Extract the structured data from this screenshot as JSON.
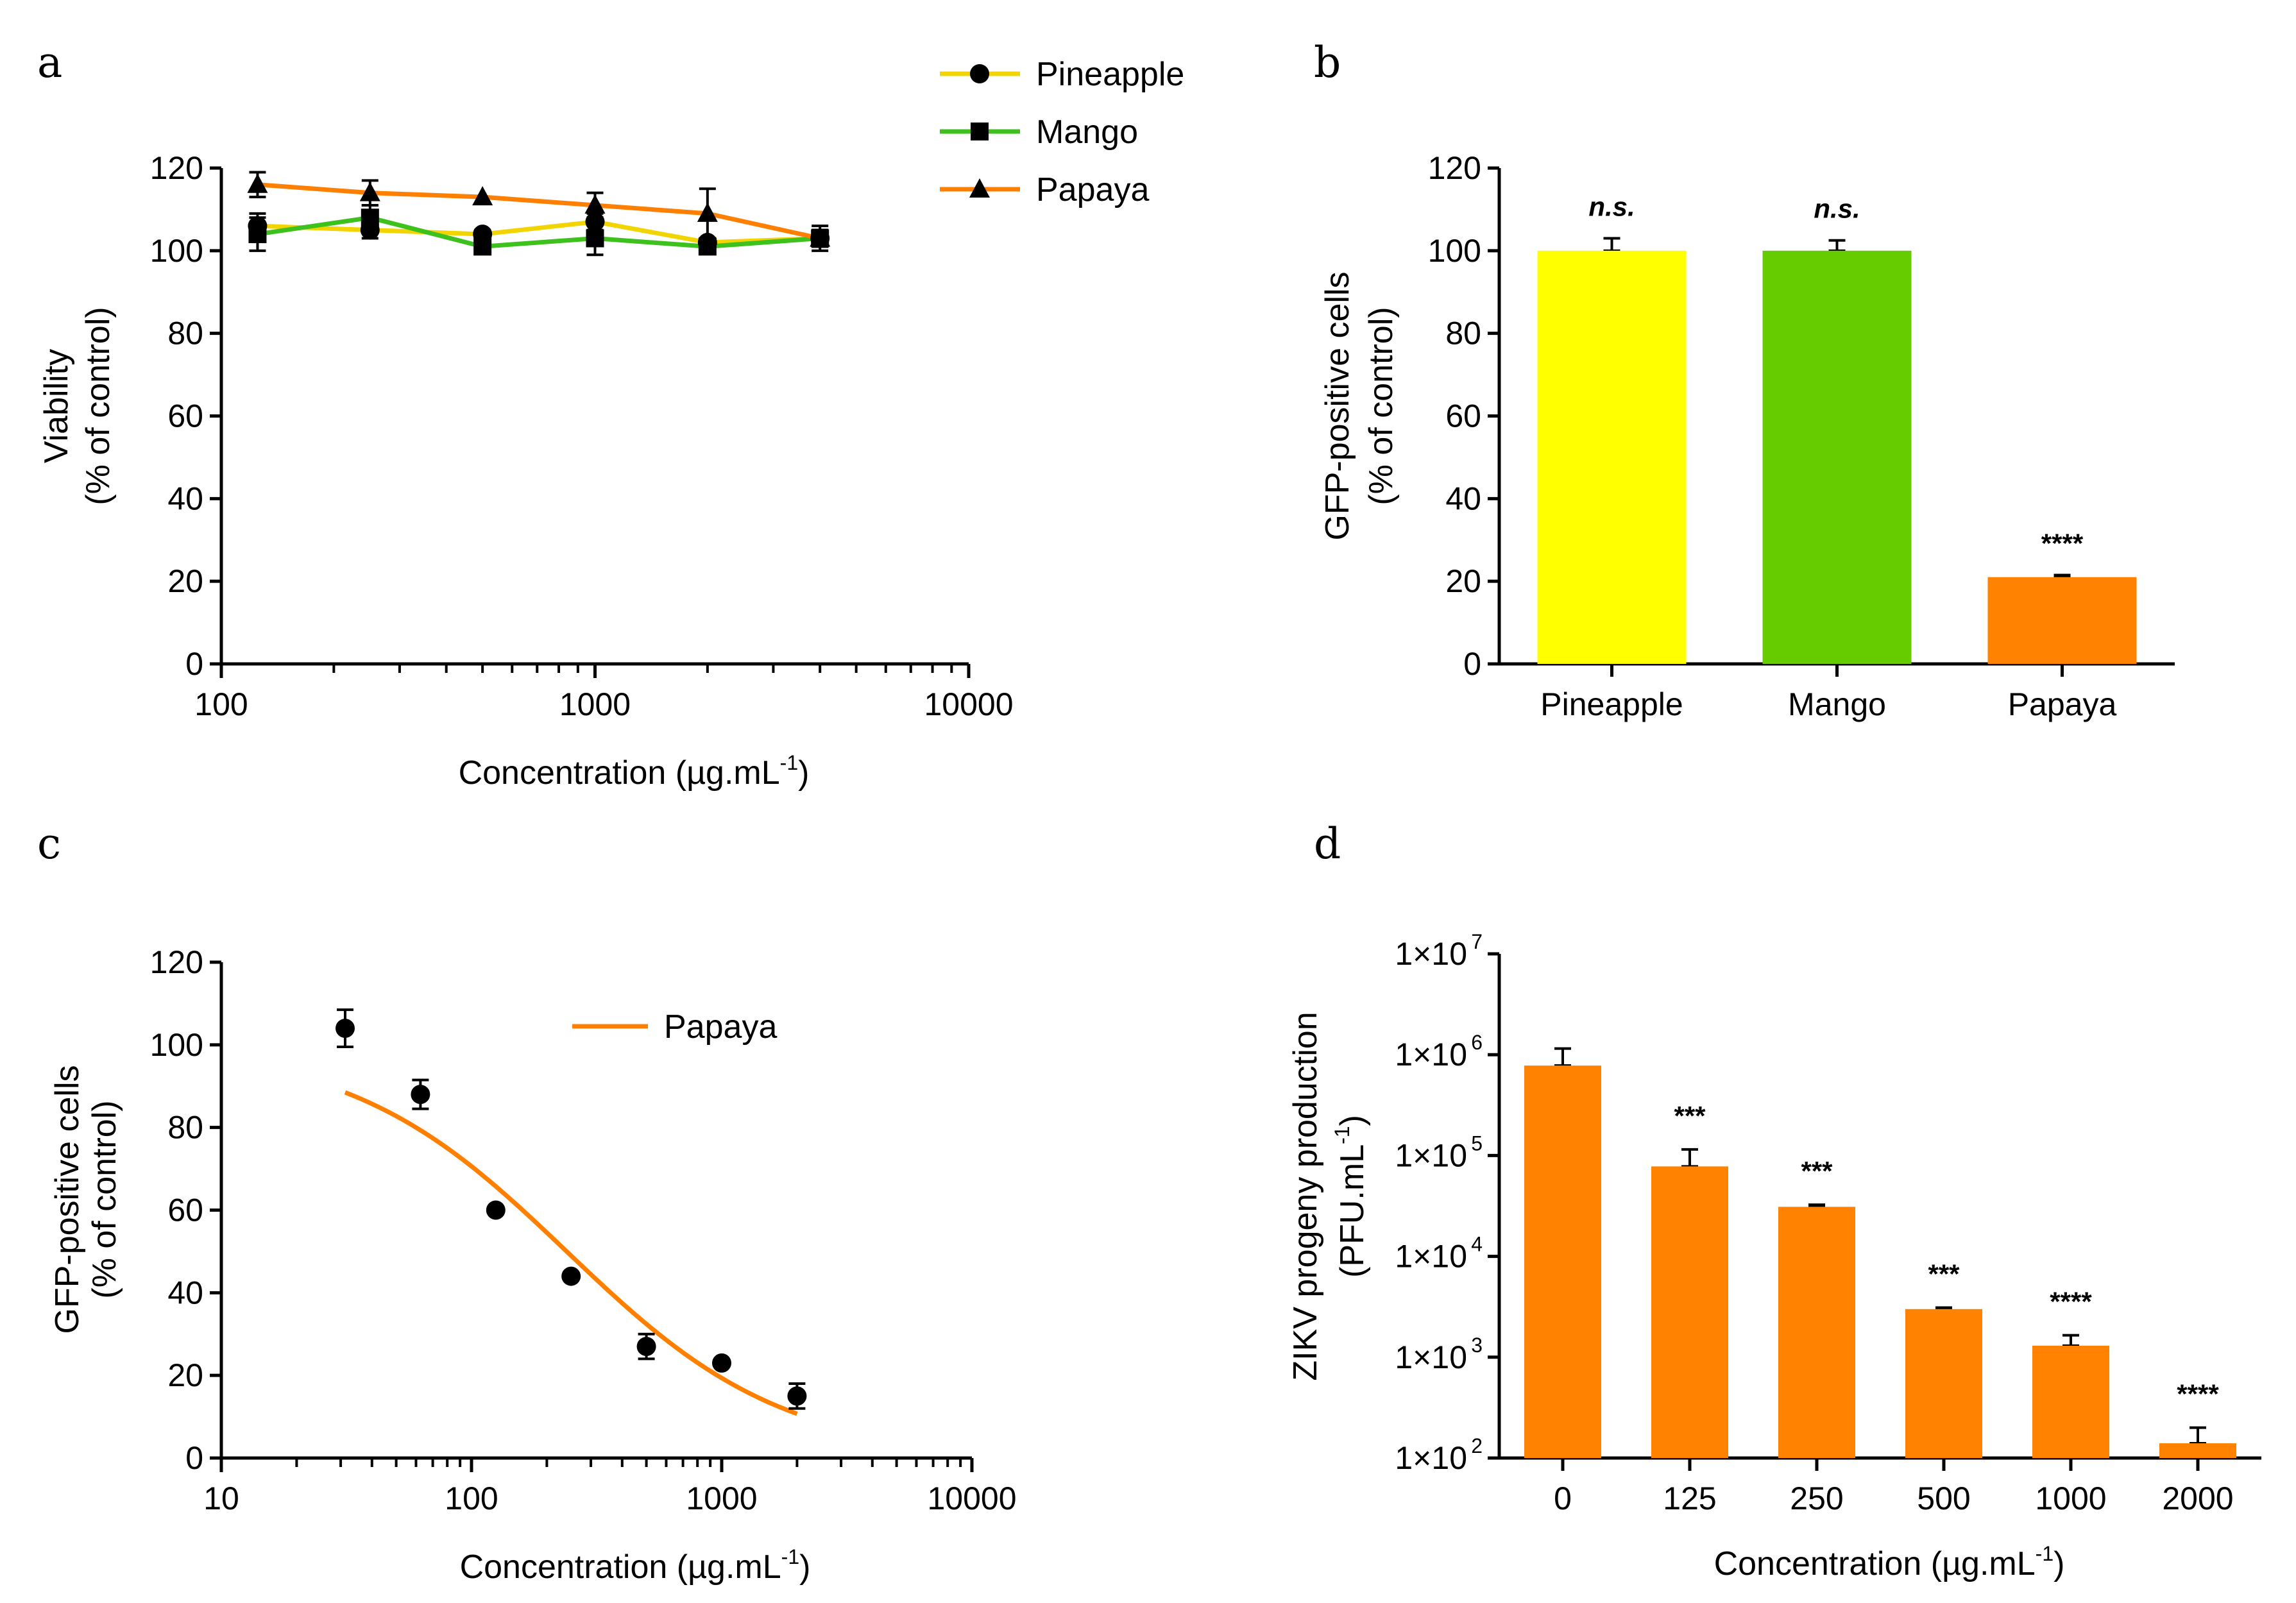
{
  "colors": {
    "pineapple": "#f2d500",
    "mango": "#3dc11d",
    "papaya": "#ff8000",
    "bar_pineapple": "#ffff00",
    "bar_mango": "#66cc00",
    "bar_papaya": "#ff8200",
    "axis": "#000000"
  },
  "panel_labels": [
    "a",
    "b",
    "c",
    "d"
  ],
  "chart_data": [
    {
      "panel": "a",
      "type": "line",
      "xscale": "log",
      "xlim": [
        100,
        10000
      ],
      "ylim": [
        0,
        120
      ],
      "xticks": [
        "100",
        "1000",
        "10000"
      ],
      "yticks": [
        "0",
        "20",
        "40",
        "60",
        "80",
        "100",
        "120"
      ],
      "xlabel": "Concentration (µg.mL",
      "xlabel_sup": "-1",
      "xlabel_end": ")",
      "ylabel": [
        "Viability",
        "(% of control)"
      ],
      "x": [
        125,
        250,
        500,
        1000,
        2000,
        4000
      ],
      "series": [
        {
          "name": "Pineapple",
          "marker": "circle",
          "color": "#f2d500",
          "values": [
            106,
            105,
            104,
            107,
            102,
            103
          ],
          "err": [
            3,
            2,
            1,
            2,
            1,
            2
          ]
        },
        {
          "name": "Mango",
          "marker": "square",
          "color": "#3dc11d",
          "values": [
            104,
            108,
            101,
            103,
            101,
            103
          ],
          "err": [
            4,
            3,
            1,
            4,
            1,
            3
          ]
        },
        {
          "name": "Papaya",
          "marker": "triangle",
          "color": "#ff8000",
          "values": [
            116,
            114,
            113,
            111,
            109,
            103
          ],
          "err": [
            3,
            3,
            0,
            3,
            6,
            2
          ]
        }
      ]
    },
    {
      "panel": "b",
      "type": "bar",
      "categories": [
        "Pineapple",
        "Mango",
        "Papaya"
      ],
      "values": [
        100,
        100,
        21
      ],
      "err": [
        3,
        2.5,
        0.5
      ],
      "colors": [
        "#ffff00",
        "#66cc00",
        "#ff8200"
      ],
      "annotations": [
        "n.s.",
        "n.s.",
        "****"
      ],
      "ylim": [
        0,
        120
      ],
      "yticks": [
        "0",
        "20",
        "40",
        "60",
        "80",
        "100",
        "120"
      ],
      "xlabel": "",
      "ylabel": [
        "GFP-positive cells",
        "(% of control)"
      ]
    },
    {
      "panel": "c",
      "type": "scatter",
      "xscale": "log",
      "xlim": [
        10,
        10000
      ],
      "ylim": [
        0,
        120
      ],
      "xticks": [
        "10",
        "100",
        "1000",
        "10000"
      ],
      "yticks": [
        "0",
        "20",
        "40",
        "60",
        "80",
        "100",
        "120"
      ],
      "xlabel": "Concentration (µg.mL",
      "xlabel_sup": "-1",
      "xlabel_end": ")",
      "ylabel": [
        "GFP-positive cells",
        "(% of control)"
      ],
      "points": {
        "x": [
          31.25,
          62.5,
          125,
          250,
          500,
          1000,
          2000
        ],
        "y": [
          104,
          88,
          60,
          44,
          27,
          23,
          15
        ],
        "err": [
          4.5,
          3.5,
          0,
          0,
          3,
          0,
          3
        ]
      },
      "fit": {
        "name": "Papaya",
        "top": 100,
        "bottom": 0,
        "ic50": 240,
        "hill": 1.0,
        "xrange": [
          31.25,
          2000
        ]
      }
    },
    {
      "panel": "d",
      "type": "bar",
      "yscale": "log",
      "ylim": [
        100,
        10000000
      ],
      "yticks": [
        "1×10",
        "1×10",
        "1×10",
        "1×10",
        "1×10",
        "1×10"
      ],
      "ytick_exp": [
        "2",
        "3",
        "4",
        "5",
        "6",
        "7"
      ],
      "categories": [
        "0",
        "125",
        "250",
        "500",
        "1000",
        "2000"
      ],
      "values": [
        780000,
        78000,
        31000,
        3000,
        1300,
        140
      ],
      "err_top": [
        1150000,
        115000,
        32500,
        3100,
        1650,
        200
      ],
      "annotations": [
        "",
        "***",
        "***",
        "***",
        "****",
        "****"
      ],
      "xlabel": "Concentration (µg.mL",
      "xlabel_sup": "-1",
      "xlabel_end": ")",
      "ylabel": [
        "ZIKV progeny production",
        "(PFU.mL",
        "-1",
        ")"
      ]
    }
  ]
}
